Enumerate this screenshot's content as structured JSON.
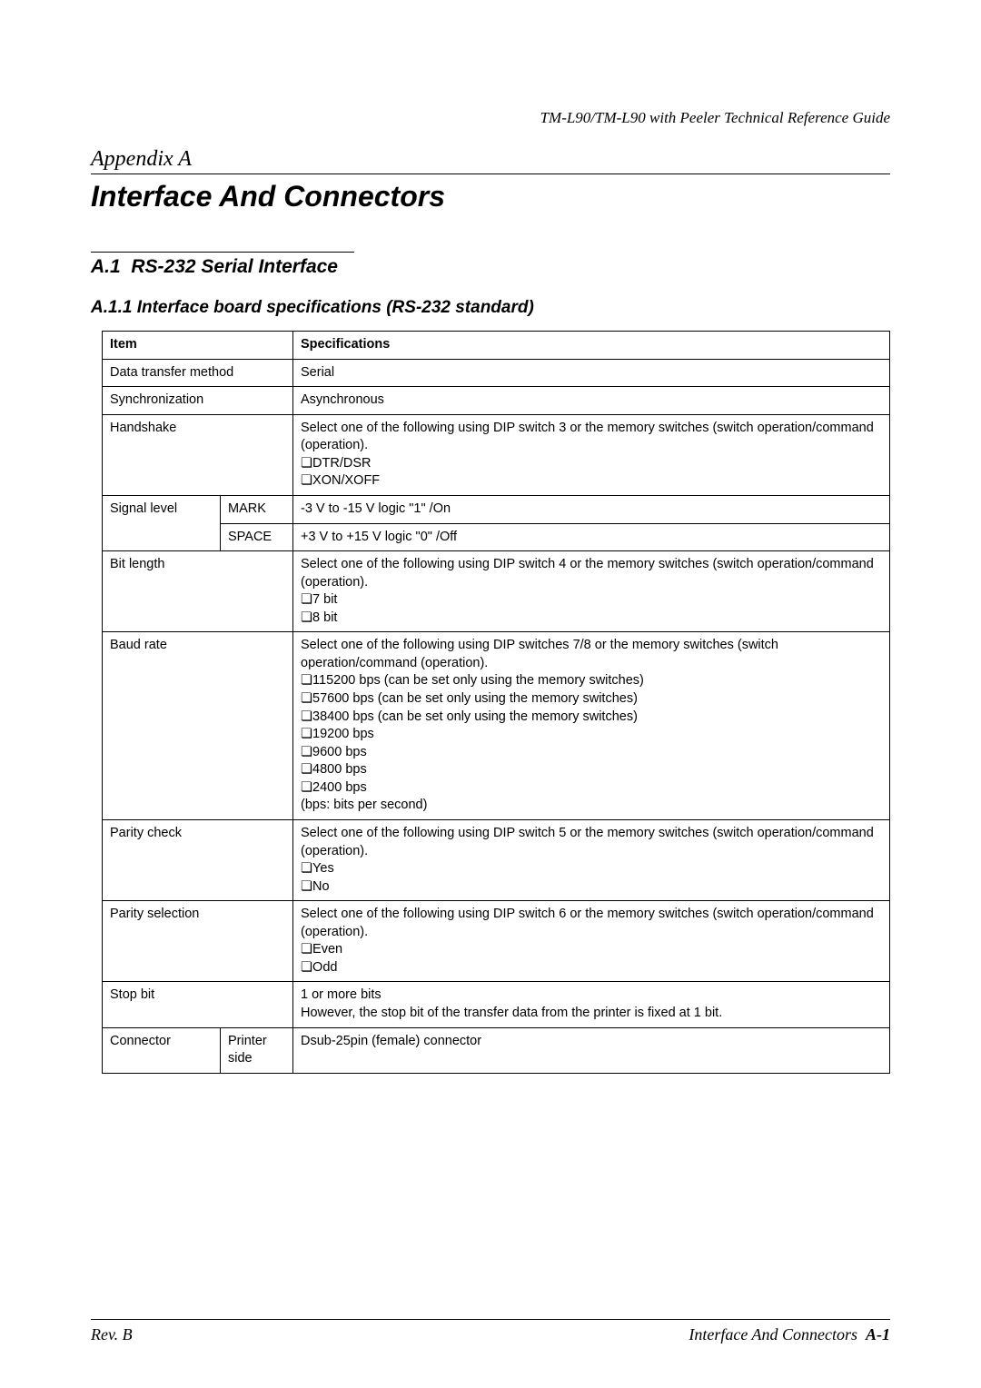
{
  "header": "TM-L90/TM-L90 with Peeler Technical Reference Guide",
  "appendix": "Appendix A",
  "title": "Interface And Connectors",
  "section_num": "A.1",
  "section_title": "RS-232 Serial Interface",
  "subsection": "A.1.1 Interface board specifications (RS-232 standard)",
  "table": {
    "head_item": "Item",
    "head_spec": "Specifications",
    "rows": {
      "data_transfer": {
        "label": "Data transfer method",
        "text": "Serial"
      },
      "sync": {
        "label": "Synchronization",
        "text": "Asynchronous"
      },
      "handshake": {
        "label": "Handshake",
        "intro": "Select one of the following using DIP switch 3 or the memory switches (switch operation/command (operation).",
        "opts": [
          "DTR/DSR",
          "XON/XOFF"
        ]
      },
      "signal": {
        "label": "Signal level",
        "mark_label": "MARK",
        "mark_text": "-3 V to -15 V logic \"1\" /On",
        "space_label": "SPACE",
        "space_text": "+3 V to +15 V logic \"0\" /Off"
      },
      "bitlen": {
        "label": "Bit length",
        "intro": "Select one of the following using DIP switch 4 or the memory switches (switch operation/command (operation).",
        "opts": [
          "7 bit",
          "8 bit"
        ]
      },
      "baud": {
        "label": "Baud rate",
        "intro": "Select one of the following using DIP switches 7/8 or the memory switches (switch operation/command (operation).",
        "opts": [
          "115200 bps (can be set only using the memory switches)",
          "57600 bps (can be set only using the memory switches)",
          "38400 bps (can be set only using the memory switches)",
          "19200 bps",
          "9600 bps",
          "4800 bps",
          "2400 bps"
        ],
        "note": "(bps: bits per second)"
      },
      "parity_check": {
        "label": "Parity check",
        "intro": "Select one of the following using DIP switch 5 or the memory switches (switch operation/command (operation).",
        "opts": [
          "Yes",
          "No"
        ]
      },
      "parity_sel": {
        "label": "Parity selection",
        "intro": "Select one of the following using DIP switch 6 or the memory switches (switch operation/command (operation).",
        "opts": [
          "Even",
          "Odd"
        ]
      },
      "stop": {
        "label": "Stop bit",
        "line1": "1 or more bits",
        "line2": "However, the stop bit of the transfer data from the printer is fixed at 1 bit."
      },
      "connector": {
        "label": "Connector",
        "sub": "Printer side",
        "text": "Dsub-25pin (female) connector"
      }
    }
  },
  "footer": {
    "rev": "Rev. B",
    "right_label": "Interface And Connectors",
    "page": "A-1"
  }
}
